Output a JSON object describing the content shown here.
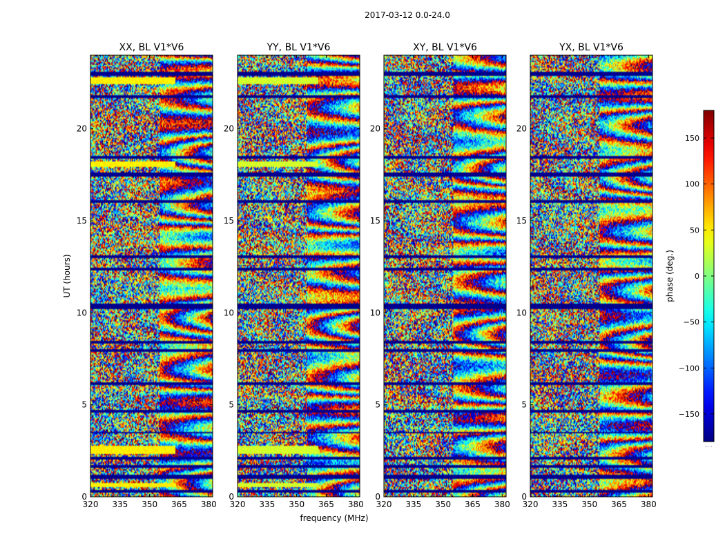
{
  "suptitle": "2017-03-12 0.0-24.0",
  "chart_data": {
    "type": "heatmap",
    "title": "2017-03-12 0.0-24.0",
    "xlabel": "frequency (MHz)",
    "ylabel": "UT (hours)",
    "xlim": [
      320,
      382
    ],
    "ylim": [
      0,
      24
    ],
    "x_ticks": [
      "320",
      "335",
      "350",
      "365",
      "380"
    ],
    "x_tick_values": [
      320,
      335,
      350,
      365,
      380
    ],
    "y_ticks": [
      "0",
      "5",
      "10",
      "15",
      "20"
    ],
    "y_tick_values": [
      0,
      5,
      10,
      15,
      20
    ],
    "panels": [
      {
        "title": "XX, BL V1*V6",
        "flat_phase": 50,
        "flat_rows": [
          [
            0.55,
            0.75
          ],
          [
            2.3,
            2.8
          ],
          [
            17.9,
            18.2
          ],
          [
            22.4,
            22.8
          ]
        ],
        "flat_cut": 363
      },
      {
        "title": "YY, BL V1*V6",
        "flat_phase": 30,
        "flat_rows": [
          [
            0.55,
            0.75
          ],
          [
            2.3,
            2.8
          ],
          [
            17.9,
            18.2
          ],
          [
            22.4,
            22.8
          ]
        ],
        "flat_cut": 361
      },
      {
        "title": "XY, BL V1*V6",
        "flat_phase": null,
        "flat_rows": [],
        "flat_cut": 382
      },
      {
        "title": "YX, BL V1*V6",
        "flat_phase": null,
        "flat_rows": [],
        "flat_cut": 382
      }
    ],
    "flagged_rows": [
      [
        0.2,
        0.4
      ],
      [
        0.95,
        1.2
      ],
      [
        1.55,
        1.7
      ],
      [
        2.05,
        2.2
      ],
      [
        3.45,
        3.55
      ],
      [
        4.55,
        4.7
      ],
      [
        6.1,
        6.25
      ],
      [
        7.9,
        8.0
      ],
      [
        8.3,
        8.45
      ],
      [
        10.2,
        10.5
      ],
      [
        12.3,
        12.45
      ],
      [
        12.95,
        13.1
      ],
      [
        15.95,
        16.15
      ],
      [
        17.4,
        17.6
      ],
      [
        18.4,
        18.55
      ],
      [
        21.7,
        21.85
      ],
      [
        22.9,
        23.1
      ]
    ],
    "colorbar": {
      "label": "phase (deg.)",
      "range": [
        -180,
        180
      ],
      "ticks": [
        "150",
        "100",
        "50",
        "0",
        "−50",
        "−100",
        "−150"
      ],
      "tick_values": [
        150,
        100,
        50,
        0,
        -50,
        -100,
        -150
      ],
      "colormap": "jet",
      "footer": "....."
    }
  }
}
